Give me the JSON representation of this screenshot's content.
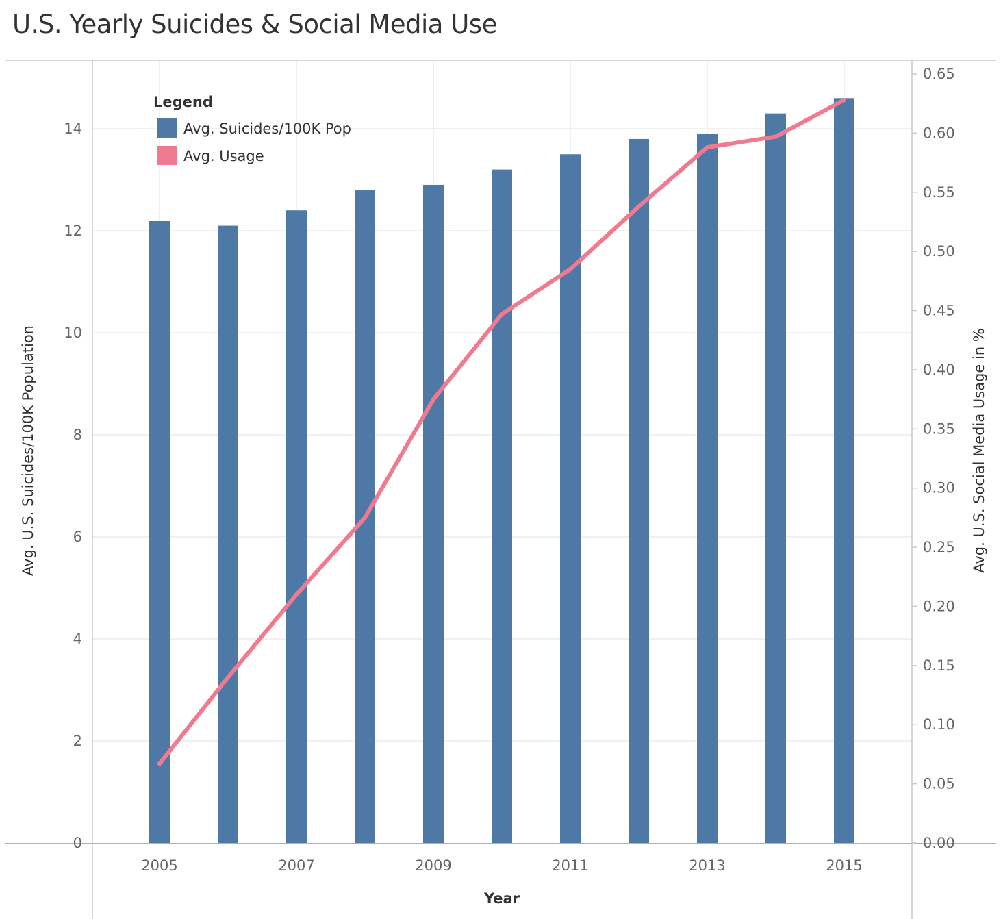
{
  "title": "U.S. Yearly Suicides & Social Media Use",
  "colors": {
    "bars": "#4e79a7",
    "line": "#f07a90",
    "grid": "#ececec",
    "frame": "#c8c8c8"
  },
  "legend": {
    "title": "Legend",
    "items": [
      {
        "label": "Avg. Suicides/100K Pop",
        "color": "#4e79a7"
      },
      {
        "label": "Avg. Usage",
        "color": "#f07a90"
      }
    ]
  },
  "chart_data": {
    "type": "bar",
    "title": "U.S. Yearly Suicides & Social Media Use",
    "xlabel": "Year",
    "ylabel": "Avg. U.S. Suicides/100K Population",
    "y2label": "Avg. U.S. Social Media Usage in %",
    "x": [
      2005,
      2006,
      2007,
      2008,
      2009,
      2010,
      2011,
      2012,
      2013,
      2014,
      2015
    ],
    "x_tick_labels": [
      "2005",
      "2007",
      "2009",
      "2011",
      "2013",
      "2015"
    ],
    "ylim": [
      0,
      14.6
    ],
    "y_tick_labels": [
      "0",
      "2",
      "4",
      "6",
      "8",
      "10",
      "12",
      "14"
    ],
    "y2lim": [
      0,
      0.65
    ],
    "y2_tick_labels": [
      "0.00",
      "0.05",
      "0.10",
      "0.15",
      "0.20",
      "0.25",
      "0.30",
      "0.35",
      "0.40",
      "0.45",
      "0.50",
      "0.55",
      "0.60",
      "0.65"
    ],
    "grid": true,
    "legend_position": "top-left",
    "series": [
      {
        "name": "Avg. Suicides/100K Pop",
        "type": "bar",
        "axis": "left",
        "values": [
          12.2,
          12.1,
          12.4,
          12.8,
          12.9,
          13.2,
          13.5,
          13.8,
          13.9,
          14.3,
          14.6
        ]
      },
      {
        "name": "Avg. Usage",
        "type": "line",
        "axis": "right",
        "values": [
          0.067,
          0.14,
          0.21,
          0.275,
          0.375,
          0.447,
          0.485,
          0.538,
          0.588,
          0.597,
          0.628
        ]
      }
    ]
  }
}
